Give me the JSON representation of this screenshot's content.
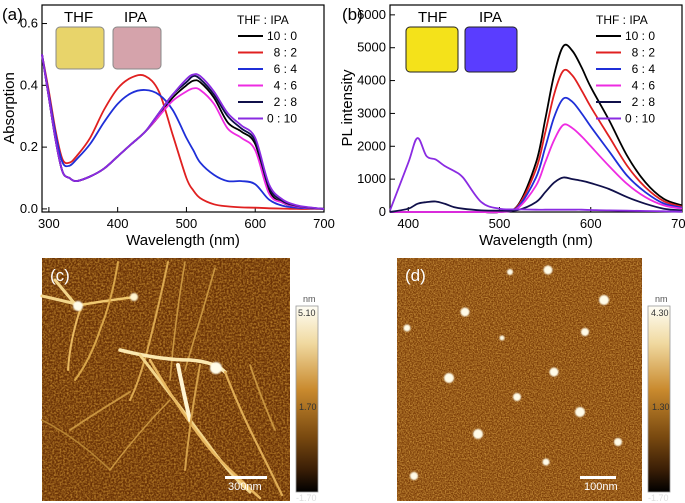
{
  "panels": [
    {
      "id": "a",
      "panel_label": "(a)",
      "vial_labels": [
        "THF",
        "IPA"
      ],
      "vial_colors": [
        "#e8d46a",
        "#d5a3ab"
      ],
      "legend_title": "THF : IPA"
    },
    {
      "id": "b",
      "panel_label": "(b)",
      "vial_labels": [
        "THF",
        "IPA"
      ],
      "vial_colors": [
        "#f4e21a",
        "#5a3dff"
      ],
      "legend_title": "THF : IPA"
    },
    {
      "id": "c",
      "panel_label": "(c)",
      "scale_bar": "300nm",
      "colorbar_unit": "nm",
      "colorbar_ticks": [
        "5.10",
        "1.70",
        "-1.70"
      ]
    },
    {
      "id": "d",
      "panel_label": "(d)",
      "scale_bar": "100nm",
      "colorbar_unit": "nm",
      "colorbar_ticks": [
        "4.30",
        "1.30",
        "-1.70"
      ]
    }
  ],
  "chart_data": [
    {
      "id": "a",
      "type": "line",
      "title": "",
      "xlabel": "Wavelength (nm)",
      "ylabel": "Absorption",
      "xlim": [
        290,
        700
      ],
      "ylim": [
        -0.01,
        0.66
      ],
      "xticks": [
        300,
        400,
        500,
        600,
        700
      ],
      "yticks": [
        0.0,
        0.2,
        0.4,
        0.6
      ],
      "ytick_labels": [
        "0.0",
        "0.2",
        "0.4",
        "0.6"
      ],
      "legend_title": "THF : IPA",
      "x": [
        290,
        300,
        310,
        320,
        330,
        340,
        360,
        380,
        400,
        420,
        440,
        460,
        480,
        500,
        510,
        520,
        540,
        560,
        580,
        600,
        620,
        640,
        660,
        680,
        700
      ],
      "series": [
        {
          "name": "10 : 0",
          "color": "#000000",
          "values": [
            0.5,
            0.36,
            0.22,
            0.12,
            0.1,
            0.09,
            0.105,
            0.13,
            0.17,
            0.21,
            0.25,
            0.3,
            0.36,
            0.4,
            0.415,
            0.41,
            0.36,
            0.28,
            0.25,
            0.21,
            0.06,
            0.02,
            0.008,
            0.003,
            0.0
          ]
        },
        {
          "name": "8 : 2",
          "color": "#e02020",
          "values": [
            0.5,
            0.38,
            0.25,
            0.16,
            0.15,
            0.17,
            0.23,
            0.32,
            0.39,
            0.425,
            0.43,
            0.38,
            0.24,
            0.1,
            0.06,
            0.035,
            0.015,
            0.008,
            0.005,
            0.004,
            0.002,
            0.001,
            0.0,
            0.0,
            0.0
          ]
        },
        {
          "name": "6 : 4",
          "color": "#1f2fd8",
          "values": [
            0.5,
            0.37,
            0.24,
            0.15,
            0.14,
            0.16,
            0.21,
            0.28,
            0.34,
            0.375,
            0.385,
            0.37,
            0.32,
            0.23,
            0.19,
            0.15,
            0.11,
            0.09,
            0.09,
            0.08,
            0.03,
            0.01,
            0.004,
            0.002,
            0.0
          ]
        },
        {
          "name": "4 : 6",
          "color": "#ee2be2",
          "values": [
            0.5,
            0.36,
            0.22,
            0.12,
            0.1,
            0.09,
            0.105,
            0.13,
            0.17,
            0.21,
            0.25,
            0.3,
            0.35,
            0.38,
            0.39,
            0.385,
            0.34,
            0.26,
            0.23,
            0.19,
            0.05,
            0.02,
            0.008,
            0.003,
            0.0
          ]
        },
        {
          "name": "2 : 8",
          "color": "#10104a",
          "values": [
            0.5,
            0.36,
            0.22,
            0.12,
            0.1,
            0.09,
            0.105,
            0.13,
            0.17,
            0.21,
            0.25,
            0.31,
            0.37,
            0.41,
            0.43,
            0.42,
            0.37,
            0.3,
            0.26,
            0.22,
            0.07,
            0.025,
            0.01,
            0.004,
            0.0
          ]
        },
        {
          "name": "0 : 10",
          "color": "#8a2be2",
          "values": [
            0.5,
            0.36,
            0.22,
            0.12,
            0.1,
            0.09,
            0.105,
            0.13,
            0.17,
            0.21,
            0.25,
            0.31,
            0.37,
            0.42,
            0.435,
            0.43,
            0.38,
            0.31,
            0.27,
            0.23,
            0.08,
            0.03,
            0.012,
            0.005,
            0.0
          ]
        }
      ]
    },
    {
      "id": "b",
      "type": "line",
      "title": "",
      "xlabel": "Wavelength (nm)",
      "ylabel": "PL intensity",
      "xlim": [
        380,
        700
      ],
      "ylim": [
        0,
        6300
      ],
      "xticks": [
        400,
        500,
        600,
        700
      ],
      "yticks": [
        0,
        1000,
        2000,
        3000,
        4000,
        5000,
        6000
      ],
      "legend_title": "THF : IPA",
      "x": [
        380,
        400,
        410,
        420,
        430,
        440,
        450,
        460,
        480,
        500,
        520,
        540,
        550,
        560,
        570,
        580,
        590,
        600,
        620,
        640,
        660,
        680,
        700
      ],
      "series": [
        {
          "name": "10 : 0",
          "color": "#000000",
          "values": [
            0,
            0,
            0,
            0,
            0,
            0,
            0,
            0,
            0,
            0,
            200,
            1500,
            2800,
            4200,
            5050,
            4900,
            4400,
            3800,
            2800,
            1700,
            900,
            400,
            200
          ]
        },
        {
          "name": "8 : 2",
          "color": "#e02020",
          "values": [
            0,
            0,
            0,
            0,
            0,
            0,
            0,
            0,
            0,
            0,
            180,
            1300,
            2400,
            3600,
            4300,
            4150,
            3700,
            3200,
            2300,
            1400,
            750,
            330,
            160
          ]
        },
        {
          "name": "6 : 4",
          "color": "#1f2fd8",
          "values": [
            0,
            0,
            0,
            0,
            0,
            0,
            0,
            0,
            0,
            0,
            150,
            1050,
            1950,
            2900,
            3450,
            3350,
            3000,
            2600,
            1850,
            1100,
            600,
            260,
            130
          ]
        },
        {
          "name": "4 : 6",
          "color": "#ee2be2",
          "values": [
            0,
            0,
            0,
            0,
            0,
            0,
            0,
            0,
            0,
            0,
            120,
            800,
            1500,
            2200,
            2650,
            2550,
            2300,
            2000,
            1400,
            850,
            450,
            200,
            100
          ]
        },
        {
          "name": "2 : 8",
          "color": "#10104a",
          "values": [
            0,
            100,
            250,
            300,
            320,
            250,
            150,
            100,
            50,
            40,
            60,
            300,
            600,
            900,
            1050,
            1000,
            950,
            880,
            700,
            450,
            250,
            100,
            50
          ]
        },
        {
          "name": "0 : 10",
          "color": "#8a2be2",
          "values": [
            50,
            1500,
            2250,
            1700,
            1600,
            1400,
            1250,
            1050,
            300,
            100,
            80,
            70,
            70,
            70,
            70,
            70,
            70,
            60,
            50,
            40,
            30,
            20,
            10
          ]
        }
      ]
    }
  ]
}
